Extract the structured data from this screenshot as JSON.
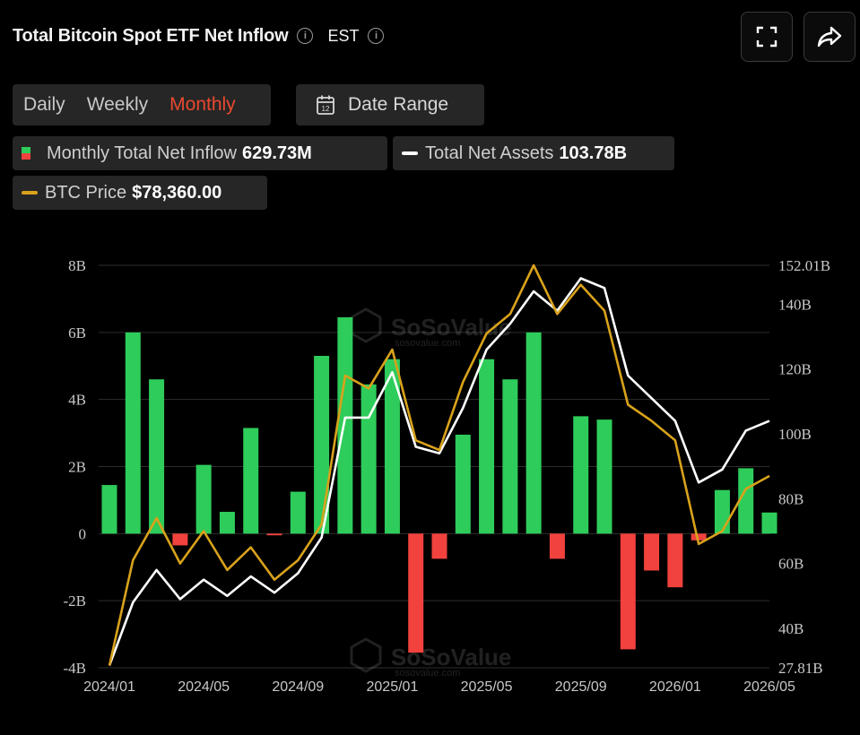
{
  "header": {
    "title": "Total Bitcoin Spot ETF Net Inflow",
    "timezone": "EST"
  },
  "periods": {
    "daily": "Daily",
    "weekly": "Weekly",
    "monthly": "Monthly",
    "active": "monthly"
  },
  "date_range": {
    "label": "Date Range"
  },
  "legend": {
    "inflow": {
      "label": "Monthly Total Net Inflow",
      "value": "629.73M"
    },
    "assets": {
      "label": "Total Net Assets",
      "value": "103.78B"
    },
    "price": {
      "label": "BTC Price",
      "value": "$78,360.00"
    }
  },
  "watermark": {
    "name": "SoSoValue",
    "url": "sosovalue.com"
  },
  "colors": {
    "positive": "#2ecc5a",
    "negative": "#f1423d",
    "assets_line": "#ffffff",
    "price_line": "#d9a21b",
    "active_period": "#e8492f"
  },
  "icons": {
    "fullscreen": "fullscreen-icon",
    "share": "share-arrow-icon",
    "calendar": "calendar-icon",
    "info": "info-icon"
  },
  "chart_data": {
    "type": "bar",
    "title": "",
    "x_labels": [
      "2024/01",
      "2024/05",
      "2024/09",
      "2025/01",
      "2025/05",
      "2025/09",
      "2026/01",
      "2026/05"
    ],
    "months": [
      "2024/01",
      "2024/02",
      "2024/03",
      "2024/04",
      "2024/05",
      "2024/06",
      "2024/07",
      "2024/08",
      "2024/09",
      "2024/10",
      "2024/11",
      "2024/12",
      "2025/01",
      "2025/02",
      "2025/03",
      "2025/04",
      "2025/05",
      "2025/06",
      "2025/07",
      "2025/08",
      "2025/09",
      "2025/10",
      "2025/11",
      "2025/12",
      "2026/01",
      "2026/02",
      "2026/03",
      "2026/04",
      "2026/05"
    ],
    "left_axis": {
      "unit": "B",
      "ylim": [
        -4,
        8
      ],
      "ticks": [
        "8B",
        "6B",
        "4B",
        "2B",
        "0",
        "-2B",
        "-4B"
      ]
    },
    "right_axis": {
      "unit": "B",
      "ylim": [
        27.81,
        152.01
      ],
      "ticks": [
        "152.01B",
        "140B",
        "120B",
        "100B",
        "80B",
        "60B",
        "40B",
        "27.81B"
      ]
    },
    "series": [
      {
        "name": "Monthly Total Net Inflow",
        "type": "bar",
        "axis": "left",
        "values": [
          1.45,
          6.0,
          4.6,
          -0.35,
          2.05,
          0.65,
          3.15,
          -0.05,
          1.25,
          5.3,
          6.45,
          4.45,
          5.2,
          -3.55,
          -0.75,
          2.95,
          5.2,
          4.6,
          6.0,
          -0.75,
          3.5,
          3.4,
          -3.45,
          -1.1,
          -1.6,
          -0.2,
          1.3,
          1.95,
          0.63
        ]
      },
      {
        "name": "Total Net Assets",
        "type": "line",
        "axis": "right",
        "values": [
          28.5,
          48,
          58,
          49,
          55,
          50,
          56,
          51,
          57,
          68,
          105,
          105,
          119,
          96,
          94,
          108,
          126,
          134,
          144,
          138,
          148,
          145,
          118,
          111,
          104,
          85,
          89,
          101,
          104
        ]
      },
      {
        "name": "BTC Price",
        "type": "line",
        "axis": "right",
        "values": [
          28.5,
          61,
          74,
          60,
          70,
          58,
          65,
          55,
          61,
          72,
          118,
          114,
          126,
          98,
          95,
          116,
          131,
          137,
          152,
          137,
          146,
          138,
          109,
          104,
          98,
          66,
          70,
          83,
          87
        ]
      }
    ],
    "grid": true,
    "legend_position": "top-left"
  }
}
